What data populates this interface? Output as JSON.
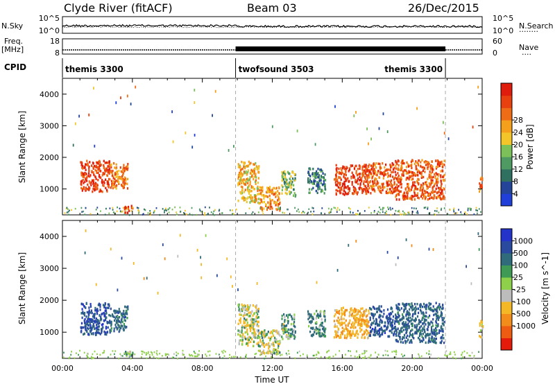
{
  "header": {
    "station": "Clyde River (fitACF)",
    "beam": "Beam 03",
    "date": "26/Dec/2015"
  },
  "noise_panel": {
    "left_label": "N.Sky",
    "right_label": "N.Search",
    "left_ticks": [
      "10^5",
      "10^0"
    ],
    "right_ticks": [
      "10^5",
      "10^0"
    ]
  },
  "freq_panel": {
    "left_label_line1": "Freq.",
    "left_label_line2": "[MHz]",
    "right_label": "Nave",
    "left_ticks": [
      "18",
      "8"
    ],
    "right_ticks": [
      "60",
      "0"
    ]
  },
  "cpid_panel": {
    "label": "CPID",
    "segments": [
      {
        "name": "themis 3300",
        "start_hour": 0,
        "end_hour": 9.9
      },
      {
        "name": "twofsound 3503",
        "start_hour": 9.9,
        "end_hour": 21.9
      },
      {
        "name": "themis 3300",
        "start_hour": 21.9,
        "end_hour": 24
      }
    ]
  },
  "axes": {
    "xlabel": "Time UT",
    "xticks": [
      "00:00",
      "04:00",
      "08:00",
      "12:00",
      "16:00",
      "20:00",
      "00:00"
    ],
    "ylabel": "Slant Range [km]",
    "yticks": [
      "1000",
      "2000",
      "3000",
      "4000"
    ]
  },
  "power_colorbar": {
    "label": "Power [dB]",
    "ticks": [
      "4",
      "8",
      "12",
      "16",
      "20",
      "24",
      "28"
    ],
    "colors": [
      "#1f3fd8",
      "#24449a",
      "#2f7060",
      "#4f9a63",
      "#7cc05a",
      "#f2c629",
      "#f5a01c",
      "#ee6c16",
      "#e8400f",
      "#e01c0c"
    ]
  },
  "velocity_colorbar": {
    "label": "Velocity [m s^-1]",
    "ticks": [
      "1000",
      "500",
      "100",
      "25",
      "-25",
      "-100",
      "-500",
      "-1000"
    ],
    "colors": [
      "#2433c9",
      "#2a4a9f",
      "#306b7c",
      "#3e9a55",
      "#8fd04a",
      "#bcbcbc",
      "#f4b725",
      "#f28c1a",
      "#ee5c12",
      "#e41a0b"
    ]
  },
  "chart_data": {
    "type": "heatmap",
    "x_unit": "hours UT",
    "xlim": [
      0,
      24
    ],
    "ylim": [
      180,
      4500
    ],
    "mode_change_hours": [
      9.9,
      21.9
    ],
    "panels": [
      "power",
      "velocity"
    ],
    "echo_regions": [
      {
        "t0": 1.0,
        "t1": 2.7,
        "r0": 950,
        "r1": 1950,
        "power": 26,
        "velocity": 700
      },
      {
        "t0": 2.7,
        "t1": 3.7,
        "r0": 1050,
        "r1": 1850,
        "power": 22,
        "velocity": 300
      },
      {
        "t0": 3.5,
        "t1": 4.0,
        "r0": 250,
        "r1": 500,
        "power": 28,
        "velocity": 50
      },
      {
        "t0": 10.0,
        "t1": 11.2,
        "r0": 600,
        "r1": 1900,
        "power": 18,
        "velocity": -80
      },
      {
        "t0": 11.2,
        "t1": 12.4,
        "r0": 350,
        "r1": 1100,
        "power": 20,
        "velocity": -60
      },
      {
        "t0": 12.5,
        "t1": 13.3,
        "r0": 800,
        "r1": 1600,
        "power": 12,
        "velocity": 60
      },
      {
        "t0": 14.0,
        "t1": 15.0,
        "r0": 900,
        "r1": 1700,
        "power": 8,
        "velocity": 150
      },
      {
        "t0": 15.5,
        "t1": 17.5,
        "r0": 850,
        "r1": 1800,
        "power": 26,
        "velocity": -400
      },
      {
        "t0": 17.5,
        "t1": 19.0,
        "r0": 900,
        "r1": 1850,
        "power": 24,
        "velocity": 600
      },
      {
        "t0": 19.0,
        "t1": 21.8,
        "r0": 700,
        "r1": 1950,
        "power": 24,
        "velocity": 400
      },
      {
        "t0": 23.8,
        "t1": 24.0,
        "r0": 800,
        "r1": 1400,
        "power": 24,
        "velocity": -200
      }
    ]
  }
}
